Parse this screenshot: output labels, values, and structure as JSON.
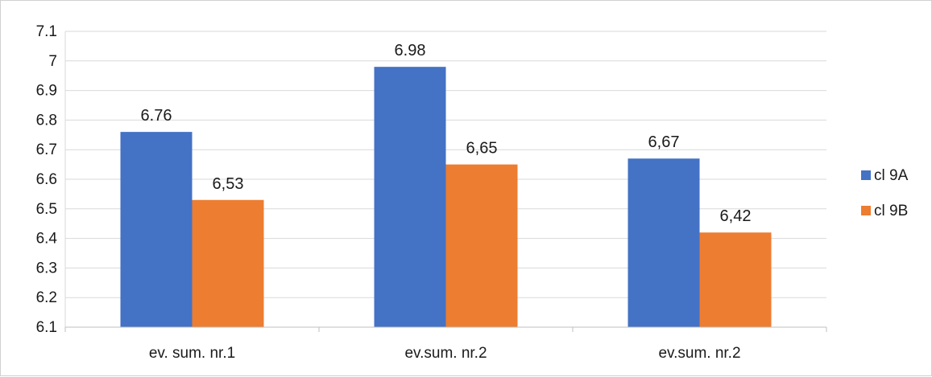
{
  "chart_data": {
    "type": "bar",
    "categories": [
      "ev. sum. nr.1",
      "ev.sum. nr.2",
      "ev.sum. nr.2"
    ],
    "series": [
      {
        "name": "cl 9A",
        "values": [
          6.76,
          6.98,
          6.67
        ],
        "labels": [
          "6.76",
          "6.98",
          "6,67"
        ],
        "color": "#4472C4"
      },
      {
        "name": "cl 9B",
        "values": [
          6.53,
          6.65,
          6.42
        ],
        "labels": [
          "6,53",
          "6,65",
          "6,42"
        ],
        "color": "#ED7D31"
      }
    ],
    "ylim": [
      6.1,
      7.1
    ],
    "yticks": [
      "6.1",
      "6.2",
      "6.3",
      "6.4",
      "6.5",
      "6.6",
      "6.7",
      "6.8",
      "6.9",
      "7",
      "7.1"
    ],
    "grid": true,
    "legend_position": "right",
    "gridline_color": "#d9d9d9"
  }
}
